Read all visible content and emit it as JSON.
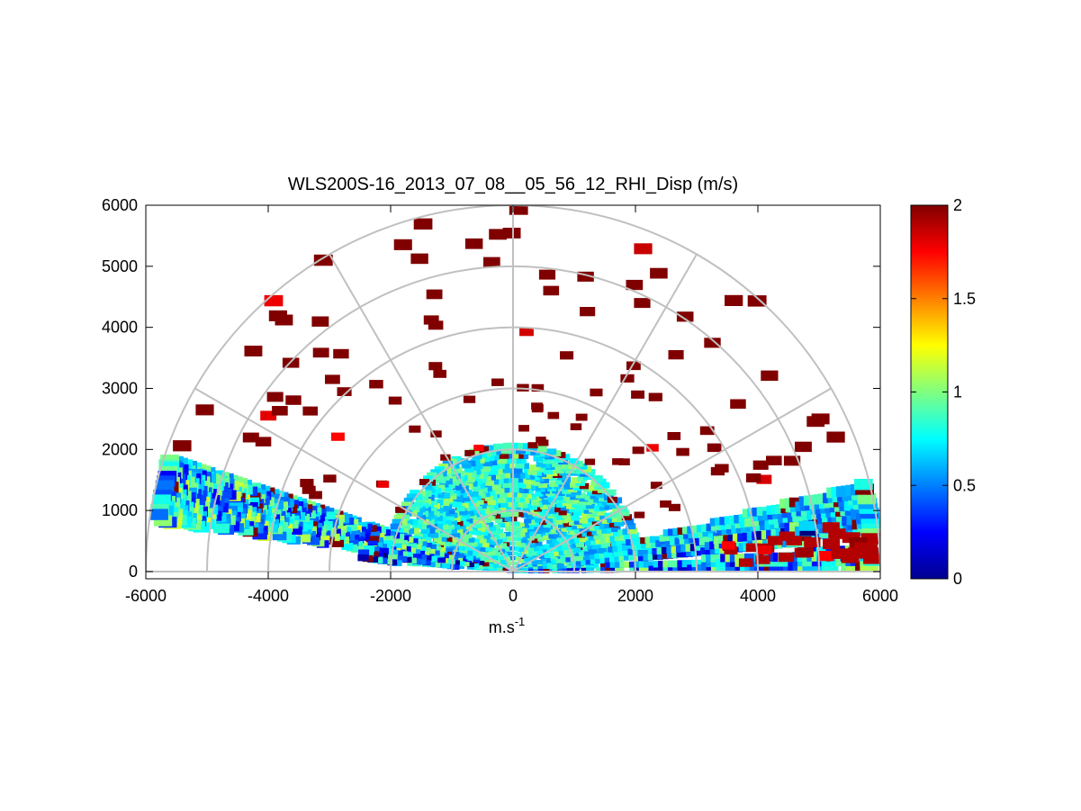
{
  "chart_data": {
    "type": "heatmap",
    "subtype": "rhi-polar-sector",
    "title": "WLS200S-16_2013_07_08__05_56_12_RHI_Disp (m/s)",
    "xlabel": {
      "base": "m.s",
      "sup": "-1"
    },
    "ylabel": "",
    "xlim": [
      -6000,
      6000
    ],
    "ylim": [
      0,
      6000
    ],
    "x_ticks": [
      "-6000",
      "-4000",
      "-2000",
      "0",
      "2000",
      "4000",
      "6000"
    ],
    "y_ticks": [
      "0",
      "1000",
      "2000",
      "3000",
      "4000",
      "5000",
      "6000"
    ],
    "polar_grid": {
      "rings": [
        1000,
        2000,
        3000,
        4000,
        5000,
        6000
      ],
      "spokes_deg": [
        0,
        30,
        60,
        90,
        120,
        150,
        180
      ]
    },
    "colorbar": {
      "colormap": "jet",
      "range": [
        0,
        2
      ],
      "ticks": [
        "0",
        "0.5",
        "1",
        "1.5",
        "2"
      ]
    },
    "wedges": [
      {
        "range": [
          0,
          1700
        ],
        "elev": [
          4,
          176
        ],
        "value": 0.75,
        "spread": 0.25
      },
      {
        "range": [
          0,
          2100
        ],
        "elev": [
          10,
          172
        ],
        "value": 0.8,
        "spread": 0.3
      },
      {
        "range": [
          0,
          5900
        ],
        "elev": [
          7,
          14
        ],
        "value": 0.7,
        "spread": 0.3
      },
      {
        "range": [
          0,
          5900
        ],
        "elev": [
          162,
          165
        ],
        "value": 0.75,
        "spread": 0.3
      },
      {
        "range": [
          0,
          5600
        ],
        "elev": [
          165,
          168
        ],
        "value": 0.4,
        "spread": 0.6
      },
      {
        "range": [
          600,
          5900
        ],
        "elev": [
          163,
          172
        ],
        "value": 0.7,
        "spread": 0.5
      },
      {
        "range": [
          2000,
          4900
        ],
        "elev": [
          6,
          9
        ],
        "value": 0.55,
        "spread": 0.6
      },
      {
        "range": [
          0,
          5900
        ],
        "elev": [
          1,
          4
        ],
        "value": 0.6,
        "spread": 0.5
      },
      {
        "range": [
          0,
          2500
        ],
        "elev": [
          171,
          176
        ],
        "value": 0.5,
        "spread": 0.5
      }
    ],
    "scattered_high_values": [
      {
        "range": [
          2000,
          6000
        ],
        "elev": [
          20,
          160
        ],
        "value": 2.0,
        "count": 110
      },
      {
        "range": [
          3500,
          5900
        ],
        "elev": [
          2,
          8
        ],
        "value": 1.9,
        "count": 30
      }
    ]
  }
}
